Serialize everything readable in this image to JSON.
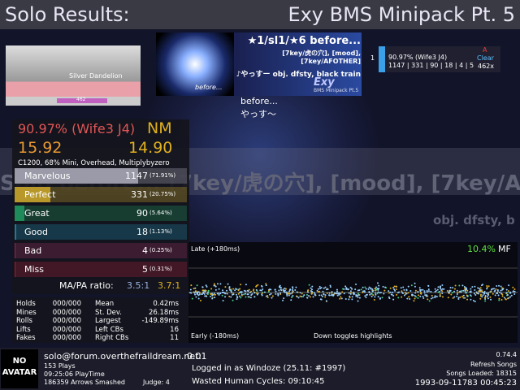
{
  "header": {
    "title": "Solo Results:",
    "pack": "Exy BMS Minipack Pt. 5"
  },
  "banner": {
    "text": "Silver Dandelion",
    "life": "462"
  },
  "song_card": {
    "jacket_text": "before...",
    "title": "★1/sl1/★6 before...",
    "subtitle": "[7key/虎の穴], [mood], [7key/AFOTHER]",
    "artist": "♪やっすー obj. dfsty, black train",
    "logo": "Exy",
    "logo_sub": "BMS Minipack Pt.5"
  },
  "scoreboard": {
    "rank": "1",
    "score": "90.97% (Wife3 J4)",
    "counts": "1147 | 331 | 90 | 18 | 4 | 5",
    "grade": "A",
    "clear": "Clear",
    "combo": "462x"
  },
  "song_info": {
    "title": "before...",
    "artist": "やっす～"
  },
  "background": {
    "line1": "Solo before... [7key/虎の穴], [mood], [7key/AF",
    "line2": "obj. dfsty, b"
  },
  "score_panel": {
    "percent": "90.97% (Wife3 J4)",
    "difficulty": "NM",
    "msd": "15.92",
    "ssr": "14.90",
    "mods": "C1200, 68% Mini, Overhead, Multiplybyzero",
    "judgments": [
      {
        "name": "Marvelous",
        "count": 1147,
        "percent": 71.91,
        "percent_label": "(71.91%)",
        "color": "#9a9aa8"
      },
      {
        "name": "Perfect",
        "count": 331,
        "percent": 20.75,
        "percent_label": "(20.75%)",
        "color": "#b8982a"
      },
      {
        "name": "Great",
        "count": 90,
        "percent": 5.64,
        "percent_label": "(5.64%)",
        "color": "#1f8a5a"
      },
      {
        "name": "Good",
        "count": 18,
        "percent": 1.13,
        "percent_label": "(1.13%)",
        "color": "#1f7a9a"
      },
      {
        "name": "Bad",
        "count": 4,
        "percent": 0.25,
        "percent_label": "(0.25%)",
        "color": "#8a2a5a"
      },
      {
        "name": "Miss",
        "count": 5,
        "percent": 0.31,
        "percent_label": "(0.31%)",
        "color": "#9a1f3a"
      }
    ],
    "ratio_label": "MA/PA ratio:",
    "ma_ratio": "3.5:1",
    "pa_ratio": "3.7:1"
  },
  "stats": {
    "left": [
      [
        "Holds",
        "000/000"
      ],
      [
        "Mines",
        "000/000"
      ],
      [
        "Rolls",
        "000/000"
      ],
      [
        "Lifts",
        "000/000"
      ],
      [
        "Fakes",
        "000/000"
      ]
    ],
    "right": [
      [
        "Mean",
        "0.42ms"
      ],
      [
        "St. Dev.",
        "26.18ms"
      ],
      [
        "Largest",
        "-149.89ms"
      ],
      [
        "Left CBs",
        "16"
      ],
      [
        "Right CBs",
        "11"
      ]
    ]
  },
  "offset_plot": {
    "late": "Late (+180ms)",
    "early": "Early (-180ms)",
    "percent": "10.4%",
    "label": "MF",
    "hint": "Down toggles highlights"
  },
  "footer": {
    "avatar": "NO AVATAR",
    "user": "solo@forum.overthefraildream.net:",
    "rating": "0.01",
    "plays": "153 Plays",
    "playtime": "09:25:06 PlayTime",
    "arrows": "186359 Arrows Smashed",
    "judge": "Judge: 4",
    "login": "Logged in as Windoze (25.11: #1997)",
    "wasted": "Wasted Human Cycles: 09:10:45",
    "version": "0.74.4",
    "refresh": "Refresh Songs",
    "loaded": "Songs Loaded: 18315",
    "clock": "1993-09-11783 00:45:23"
  }
}
